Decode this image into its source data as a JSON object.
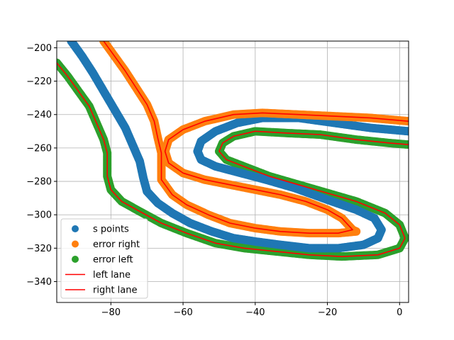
{
  "chart_data": {
    "type": "scatter",
    "title": "",
    "xlabel": "",
    "ylabel": "",
    "xlim": [
      -95,
      2.5
    ],
    "ylim": [
      -352.5,
      -196
    ],
    "xticks": [
      -80,
      -60,
      -40,
      -20,
      0
    ],
    "yticks": [
      -340,
      -320,
      -300,
      -280,
      -260,
      -240,
      -220,
      -200
    ],
    "grid": true,
    "legend_position": "lower-left",
    "series": [
      {
        "name": "s points",
        "kind": "scatter",
        "color": "#1f77b4",
        "points": [
          [
            -91,
            -196
          ],
          [
            -88,
            -205
          ],
          [
            -85,
            -215
          ],
          [
            -82,
            -226
          ],
          [
            -79,
            -237
          ],
          [
            -76,
            -248
          ],
          [
            -74,
            -258
          ],
          [
            -72,
            -268
          ],
          [
            -71,
            -278
          ],
          [
            -70,
            -286
          ],
          [
            -67,
            -293
          ],
          [
            -63,
            -299
          ],
          [
            -58,
            -305
          ],
          [
            -52,
            -310
          ],
          [
            -46,
            -314
          ],
          [
            -40,
            -316
          ],
          [
            -33,
            -318
          ],
          [
            -25,
            -320
          ],
          [
            -17,
            -320
          ],
          [
            -10,
            -318
          ],
          [
            -6,
            -314
          ],
          [
            -5,
            -309
          ],
          [
            -7,
            -302
          ],
          [
            -12,
            -297
          ],
          [
            -20,
            -291
          ],
          [
            -29,
            -284
          ],
          [
            -37,
            -279
          ],
          [
            -44,
            -275
          ],
          [
            -51,
            -271
          ],
          [
            -55,
            -267
          ],
          [
            -56,
            -262
          ],
          [
            -55,
            -256
          ],
          [
            -51,
            -250
          ],
          [
            -45,
            -245
          ],
          [
            -38,
            -242
          ],
          [
            -28,
            -242
          ],
          [
            -18,
            -245
          ],
          [
            -8,
            -248
          ],
          [
            2.5,
            -250
          ]
        ]
      },
      {
        "name": "error right",
        "kind": "scatter",
        "color": "#ff7f0e",
        "points": [
          [
            -82,
            -196
          ],
          [
            -79,
            -205
          ],
          [
            -76,
            -214
          ],
          [
            -73,
            -224
          ],
          [
            -70,
            -234
          ],
          [
            -68,
            -244
          ],
          [
            -67,
            -254
          ],
          [
            -66,
            -263
          ],
          [
            -66,
            -271
          ],
          [
            -66,
            -279
          ],
          [
            -63,
            -288
          ],
          [
            -59,
            -294
          ],
          [
            -53,
            -300
          ],
          [
            -47,
            -305
          ],
          [
            -40,
            -308
          ],
          [
            -33,
            -310
          ],
          [
            -25,
            -311
          ],
          [
            -17,
            -311
          ],
          [
            -12,
            -310
          ],
          [
            -13,
            -309
          ],
          [
            -16,
            -302
          ],
          [
            -20,
            -297
          ],
          [
            -26,
            -292
          ],
          [
            -33,
            -288
          ],
          [
            -40,
            -285
          ],
          [
            -47,
            -282
          ],
          [
            -54,
            -279
          ],
          [
            -60,
            -275
          ],
          [
            -64,
            -269
          ],
          [
            -65,
            -262
          ],
          [
            -64,
            -255
          ],
          [
            -60,
            -249
          ],
          [
            -54,
            -244
          ],
          [
            -46,
            -240
          ],
          [
            -38,
            -239
          ],
          [
            -28,
            -240
          ],
          [
            -18,
            -241
          ],
          [
            -8,
            -242
          ],
          [
            2.5,
            -244
          ]
        ]
      },
      {
        "name": "error left",
        "kind": "scatter",
        "color": "#2ca02c",
        "points": [
          [
            -95,
            -209
          ],
          [
            -92,
            -217
          ],
          [
            -89,
            -226
          ],
          [
            -86,
            -235
          ],
          [
            -84,
            -245
          ],
          [
            -82,
            -255
          ],
          [
            -81,
            -263
          ],
          [
            -81,
            -270
          ],
          [
            -81,
            -277
          ],
          [
            -80,
            -285
          ],
          [
            -77,
            -292
          ],
          [
            -72,
            -298
          ],
          [
            -66,
            -305
          ],
          [
            -59,
            -311
          ],
          [
            -51,
            -317
          ],
          [
            -43,
            -320
          ],
          [
            -34,
            -322
          ],
          [
            -25,
            -324
          ],
          [
            -16,
            -325
          ],
          [
            -6,
            -324
          ],
          [
            0,
            -320
          ],
          [
            1.5,
            -314
          ],
          [
            0,
            -306
          ],
          [
            -4,
            -299
          ],
          [
            -12,
            -292
          ],
          [
            -20,
            -287
          ],
          [
            -28,
            -282
          ],
          [
            -36,
            -277
          ],
          [
            -42,
            -272
          ],
          [
            -48,
            -267
          ],
          [
            -50,
            -262
          ],
          [
            -49,
            -257
          ],
          [
            -46,
            -253
          ],
          [
            -40,
            -250
          ],
          [
            -32,
            -251
          ],
          [
            -22,
            -252
          ],
          [
            -12,
            -255
          ],
          [
            -3,
            -257
          ],
          [
            2.5,
            -258
          ]
        ]
      },
      {
        "name": "left lane",
        "kind": "line",
        "color": "#ff0000",
        "points": [
          [
            -95,
            -209
          ],
          [
            -92,
            -217
          ],
          [
            -89,
            -226
          ],
          [
            -86,
            -235
          ],
          [
            -84,
            -245
          ],
          [
            -82,
            -255
          ],
          [
            -81,
            -263
          ],
          [
            -81,
            -270
          ],
          [
            -81,
            -277
          ],
          [
            -80,
            -285
          ],
          [
            -77,
            -292
          ],
          [
            -72,
            -298
          ],
          [
            -66,
            -305
          ],
          [
            -59,
            -311
          ],
          [
            -51,
            -317
          ],
          [
            -43,
            -320
          ],
          [
            -34,
            -322
          ],
          [
            -25,
            -324
          ],
          [
            -16,
            -325
          ],
          [
            -6,
            -324
          ],
          [
            0,
            -320
          ],
          [
            1.5,
            -314
          ],
          [
            0,
            -306
          ],
          [
            -4,
            -299
          ],
          [
            -12,
            -292
          ],
          [
            -20,
            -287
          ],
          [
            -28,
            -282
          ],
          [
            -36,
            -277
          ],
          [
            -42,
            -272
          ],
          [
            -48,
            -267
          ],
          [
            -50,
            -262
          ],
          [
            -49,
            -257
          ],
          [
            -46,
            -253
          ],
          [
            -40,
            -250
          ],
          [
            -32,
            -251
          ],
          [
            -22,
            -252
          ],
          [
            -12,
            -255
          ],
          [
            -3,
            -257
          ],
          [
            2.5,
            -258
          ]
        ]
      },
      {
        "name": "right lane",
        "kind": "line",
        "color": "#ff0000",
        "points": [
          [
            -82,
            -196
          ],
          [
            -79,
            -205
          ],
          [
            -76,
            -214
          ],
          [
            -73,
            -224
          ],
          [
            -70,
            -234
          ],
          [
            -68,
            -244
          ],
          [
            -67,
            -254
          ],
          [
            -66,
            -263
          ],
          [
            -66,
            -271
          ],
          [
            -66,
            -279
          ],
          [
            -63,
            -288
          ],
          [
            -59,
            -294
          ],
          [
            -53,
            -300
          ],
          [
            -47,
            -305
          ],
          [
            -40,
            -308
          ],
          [
            -33,
            -310
          ],
          [
            -25,
            -311
          ],
          [
            -17,
            -311
          ],
          [
            -13,
            -309
          ],
          [
            -16,
            -302
          ],
          [
            -20,
            -297
          ],
          [
            -26,
            -292
          ],
          [
            -33,
            -288
          ],
          [
            -40,
            -285
          ],
          [
            -47,
            -282
          ],
          [
            -54,
            -279
          ],
          [
            -60,
            -275
          ],
          [
            -64,
            -269
          ],
          [
            -65,
            -262
          ],
          [
            -64,
            -255
          ],
          [
            -60,
            -249
          ],
          [
            -54,
            -244
          ],
          [
            -46,
            -240
          ],
          [
            -38,
            -239
          ],
          [
            -28,
            -240
          ],
          [
            -18,
            -241
          ],
          [
            -8,
            -242
          ],
          [
            2.5,
            -244
          ]
        ]
      }
    ],
    "legend": [
      "s points",
      "error right",
      "error left",
      "left lane",
      "right lane"
    ]
  }
}
